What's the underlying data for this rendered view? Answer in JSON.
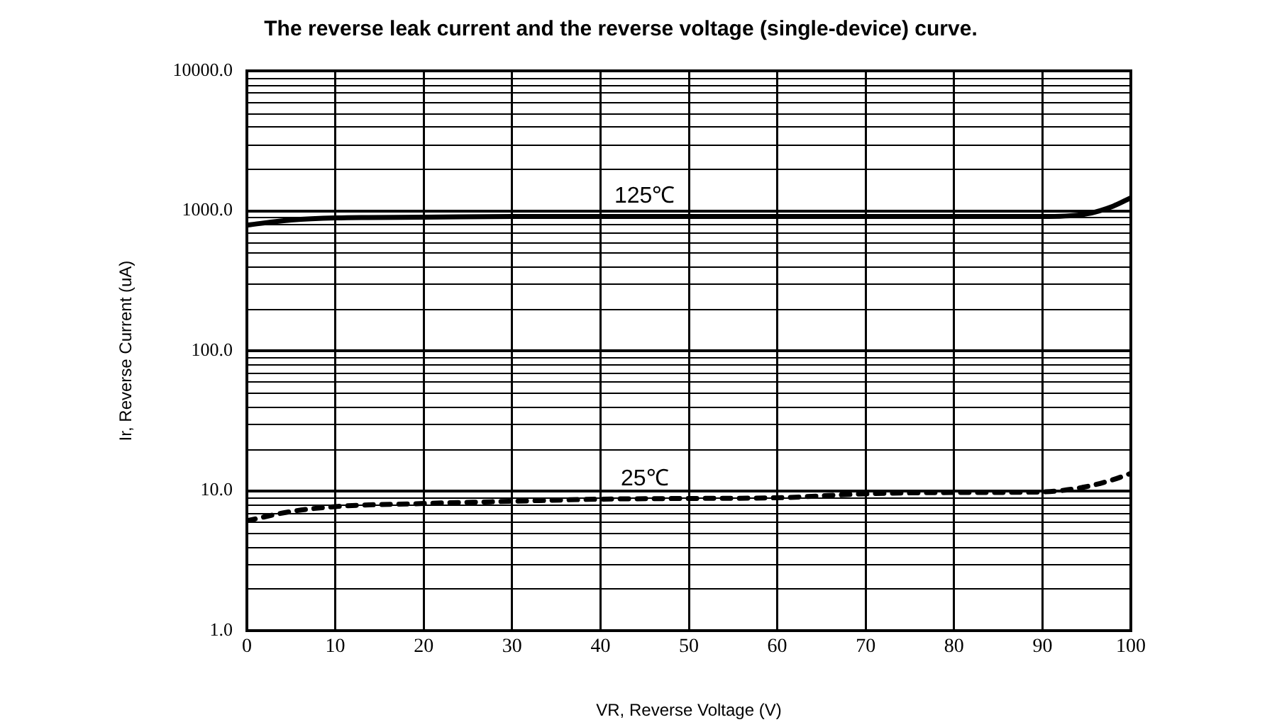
{
  "chart_data": {
    "type": "line",
    "title": "The reverse leak current and the reverse voltage (single-device) curve.",
    "xlabel": "VR, Reverse Voltage (V)",
    "ylabel": "Ir, Reverse Current (uA)",
    "log": "y",
    "grid": true,
    "legend": false,
    "marker": "none",
    "xlim": [
      0,
      100
    ],
    "xticks": [
      0,
      10,
      20,
      30,
      40,
      50,
      60,
      70,
      80,
      90,
      100
    ],
    "ylim": [
      1,
      10000
    ],
    "yticks": [
      {
        "value": 1,
        "label": "1.0"
      },
      {
        "value": 10,
        "label": "10.0"
      },
      {
        "value": 100,
        "label": "100.0"
      },
      {
        "value": 1000,
        "label": "1000.0"
      },
      {
        "value": 10000,
        "label": "10000.0"
      }
    ],
    "series": [
      {
        "name": "125℃",
        "color": "#000000",
        "line_style": "solid",
        "x": [
          0,
          5,
          10,
          20,
          30,
          40,
          50,
          60,
          70,
          80,
          90,
          95,
          98,
          100
        ],
        "values": [
          790,
          860,
          890,
          900,
          910,
          910,
          910,
          910,
          910,
          910,
          910,
          950,
          1080,
          1240
        ]
      },
      {
        "name": "25℃",
        "color": "#000000",
        "line_style": "dashed",
        "x": [
          0,
          5,
          10,
          20,
          30,
          40,
          50,
          60,
          70,
          80,
          90,
          95,
          98,
          100
        ],
        "values": [
          6.1,
          7.1,
          7.7,
          8.1,
          8.4,
          8.7,
          8.8,
          8.9,
          9.5,
          9.7,
          9.8,
          10.7,
          12,
          13.3
        ]
      }
    ]
  }
}
